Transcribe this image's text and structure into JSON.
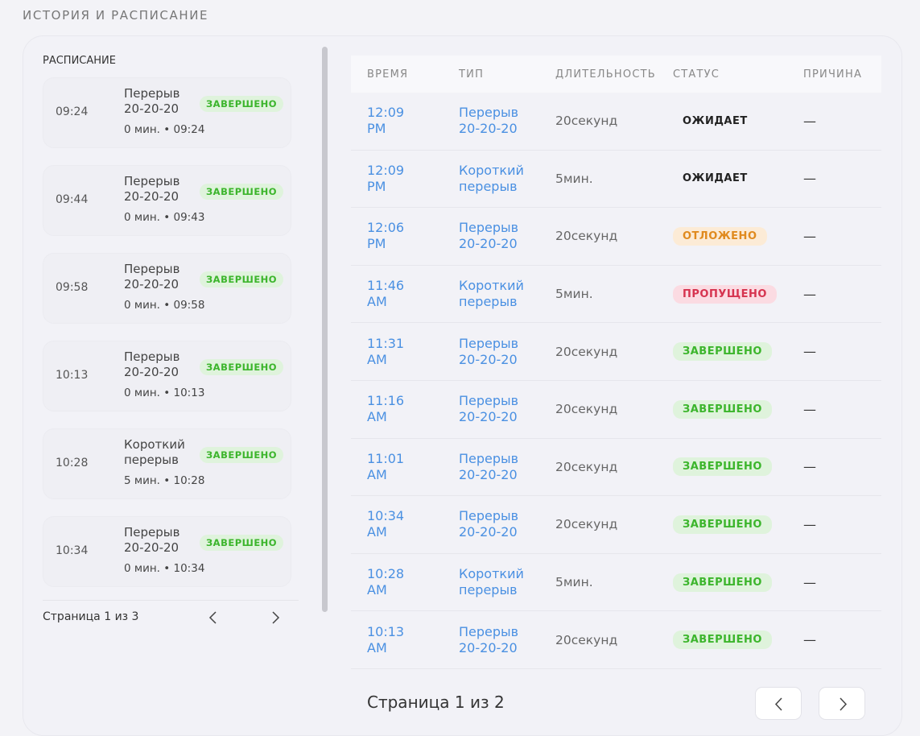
{
  "header": {
    "title": "ИСТОРИЯ И РАСПИСАНИЕ"
  },
  "schedule": {
    "title": "РАСПИСАНИЕ",
    "items": [
      {
        "time": "09:24",
        "title": "Перерыв 20-20-20",
        "status": "ЗАВЕРШЕНО",
        "detail": "0 мин. • 09:24"
      },
      {
        "time": "09:44",
        "title": "Перерыв 20-20-20",
        "status": "ЗАВЕРШЕНО",
        "detail": "0 мин. • 09:43"
      },
      {
        "time": "09:58",
        "title": "Перерыв 20-20-20",
        "status": "ЗАВЕРШЕНО",
        "detail": "0 мин. • 09:58"
      },
      {
        "time": "10:13",
        "title": "Перерыв 20-20-20",
        "status": "ЗАВЕРШЕНО",
        "detail": "0 мин. • 10:13"
      },
      {
        "time": "10:28",
        "title": "Короткий перерыв",
        "status": "ЗАВЕРШЕНО",
        "detail": "5 мин. • 10:28"
      },
      {
        "time": "10:34",
        "title": "Перерыв 20-20-20",
        "status": "ЗАВЕРШЕНО",
        "detail": "0 мин. • 10:34"
      }
    ],
    "pagination": "Страница 1 из 3"
  },
  "table": {
    "columns": [
      "ВРЕМЯ",
      "ТИП",
      "ДЛИТЕЛЬНОСТЬ",
      "СТАТУС",
      "ПРИЧИНА"
    ],
    "rows": [
      {
        "time": "12:09 PM",
        "type": "Перерыв 20-20-20",
        "duration": "20секунд",
        "status": "ОЖИДАЕТ",
        "status_color": "neutral",
        "reason": "—"
      },
      {
        "time": "12:09 PM",
        "type": "Короткий перерыв",
        "duration": "5мин.",
        "status": "ОЖИДАЕТ",
        "status_color": "neutral",
        "reason": "—"
      },
      {
        "time": "12:06 PM",
        "type": "Перерыв 20-20-20",
        "duration": "20секунд",
        "status": "ОТЛОЖЕНО",
        "status_color": "orange",
        "reason": "—"
      },
      {
        "time": "11:46 AM",
        "type": "Короткий перерыв",
        "duration": "5мин.",
        "status": "ПРОПУЩЕНО",
        "status_color": "red",
        "reason": "—"
      },
      {
        "time": "11:31 AM",
        "type": "Перерыв 20-20-20",
        "duration": "20секунд",
        "status": "ЗАВЕРШЕНО",
        "status_color": "green",
        "reason": "—"
      },
      {
        "time": "11:16 AM",
        "type": "Перерыв 20-20-20",
        "duration": "20секунд",
        "status": "ЗАВЕРШЕНО",
        "status_color": "green",
        "reason": "—"
      },
      {
        "time": "11:01 AM",
        "type": "Перерыв 20-20-20",
        "duration": "20секунд",
        "status": "ЗАВЕРШЕНО",
        "status_color": "green",
        "reason": "—"
      },
      {
        "time": "10:34 AM",
        "type": "Перерыв 20-20-20",
        "duration": "20секунд",
        "status": "ЗАВЕРШЕНО",
        "status_color": "green",
        "reason": "—"
      },
      {
        "time": "10:28 AM",
        "type": "Короткий перерыв",
        "duration": "5мин.",
        "status": "ЗАВЕРШЕНО",
        "status_color": "green",
        "reason": "—"
      },
      {
        "time": "10:13 AM",
        "type": "Перерыв 20-20-20",
        "duration": "20секунд",
        "status": "ЗАВЕРШЕНО",
        "status_color": "green",
        "reason": "—"
      }
    ],
    "pagination": "Страница 1 из 2"
  }
}
